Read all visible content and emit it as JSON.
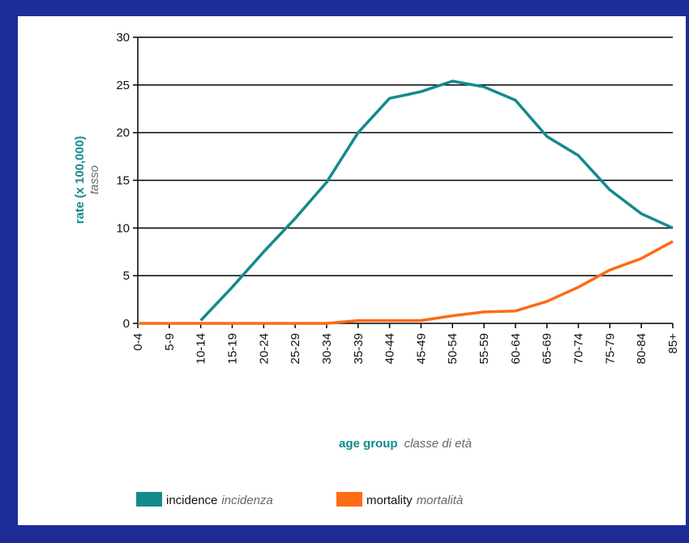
{
  "chart_data": {
    "type": "line",
    "y_label": "rate (x 100,000)",
    "y_label_it": "tasso",
    "x_label": "age group",
    "x_label_it": "classe di età",
    "categories": [
      "0-4",
      "5-9",
      "10-14",
      "15-19",
      "20-24",
      "25-29",
      "30-34",
      "35-39",
      "40-44",
      "45-49",
      "50-54",
      "55-59",
      "60-64",
      "65-69",
      "70-74",
      "75-79",
      "80-84",
      "85+"
    ],
    "series": [
      {
        "name": "incidence",
        "name_it": "incidenza",
        "color": "#148a8a",
        "values": [
          null,
          null,
          0.3,
          3.8,
          7.5,
          11,
          14.8,
          20,
          23.6,
          24.3,
          25.4,
          24.8,
          23.4,
          19.6,
          17.6,
          14,
          11.5,
          10
        ]
      },
      {
        "name": "mortality",
        "name_it": "mortalità",
        "color": "#ff6a14",
        "values": [
          0,
          0,
          0,
          0,
          0,
          0,
          0,
          0.3,
          0.3,
          0.3,
          0.8,
          1.2,
          1.3,
          2.3,
          3.8,
          5.6,
          6.8,
          8.6
        ]
      }
    ],
    "ylim": [
      0,
      30
    ],
    "yticks": [
      0,
      5,
      10,
      15,
      20,
      25,
      30
    ],
    "grid": true
  }
}
